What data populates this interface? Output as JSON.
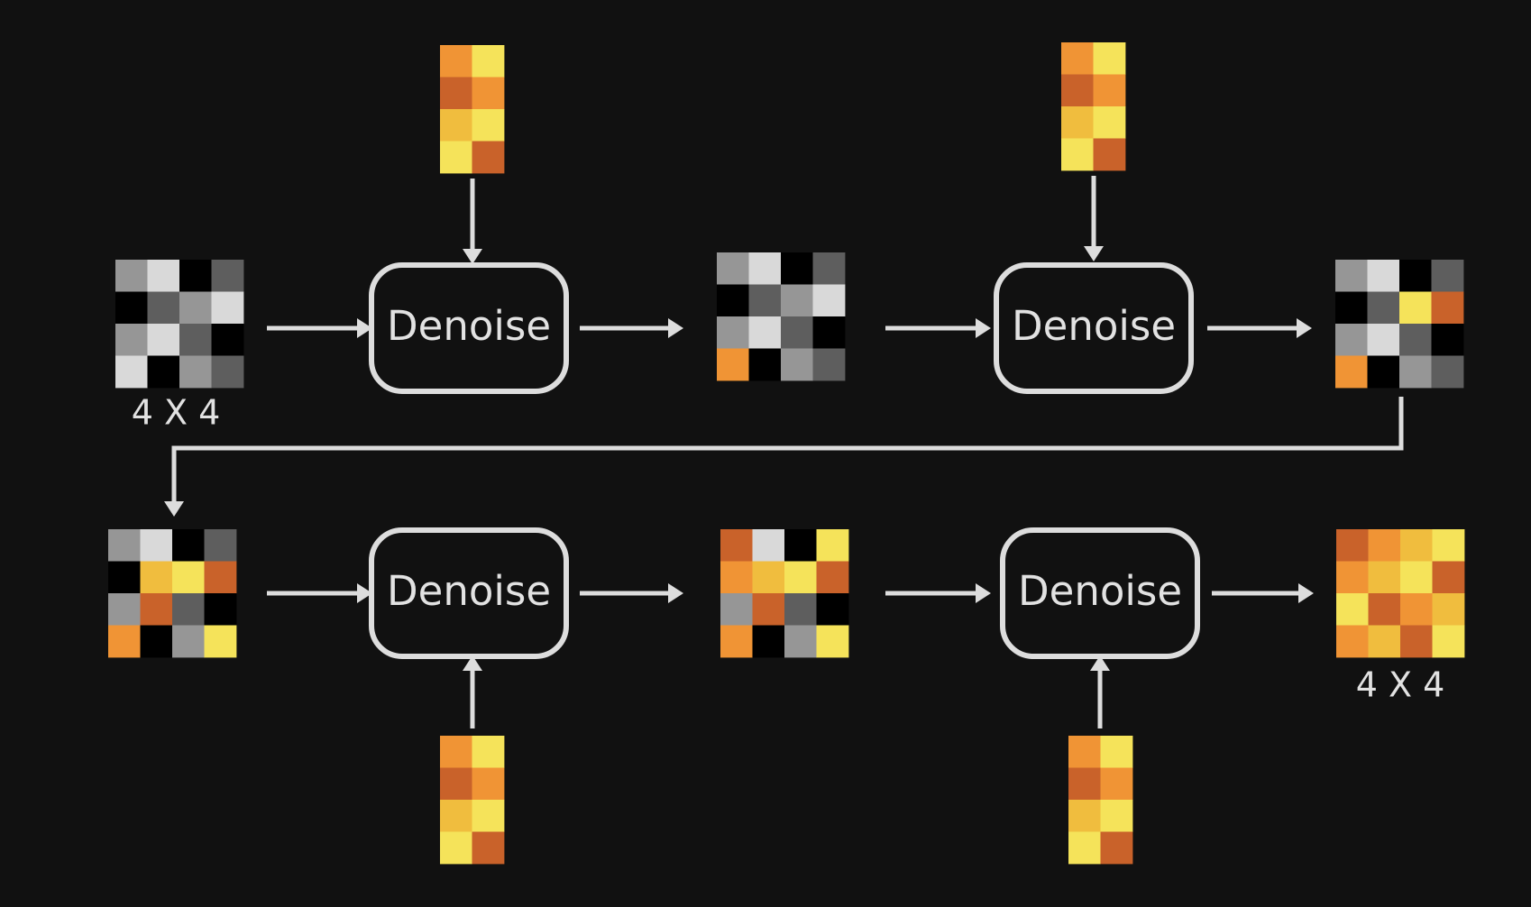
{
  "diagram": {
    "background": "#111111",
    "line_color": "#dddddd",
    "input_size_label": "4 X 4",
    "output_size_label": "4 X 4",
    "steps": [
      {
        "label": "Denoise"
      },
      {
        "label": "Denoise"
      },
      {
        "label": "Denoise"
      },
      {
        "label": "Denoise"
      }
    ],
    "palette": {
      "g1": "#969696",
      "g2": "#d9d9d9",
      "g3": "#000000",
      "g4": "#5e5e5e",
      "o": "#f09435",
      "d": "#c9622a",
      "y": "#f5e35a",
      "m": "#f0bd3e"
    },
    "latents": [
      {
        "name": "latent-initial-noise",
        "cells": [
          [
            "g1",
            "g2",
            "g3",
            "g4"
          ],
          [
            "g3",
            "g4",
            "g1",
            "g2"
          ],
          [
            "g1",
            "g2",
            "g4",
            "g3"
          ],
          [
            "g2",
            "g3",
            "g1",
            "g4"
          ]
        ]
      },
      {
        "name": "latent-step-1",
        "cells": [
          [
            "g1",
            "g2",
            "g3",
            "g4"
          ],
          [
            "g3",
            "g4",
            "g1",
            "g2"
          ],
          [
            "g1",
            "g2",
            "g4",
            "g3"
          ],
          [
            "o",
            "g3",
            "g1",
            "g4"
          ]
        ]
      },
      {
        "name": "latent-step-2",
        "cells": [
          [
            "g1",
            "g2",
            "g3",
            "g4"
          ],
          [
            "g3",
            "g4",
            "y",
            "d"
          ],
          [
            "g1",
            "g2",
            "g4",
            "g3"
          ],
          [
            "o",
            "g3",
            "g1",
            "g4"
          ]
        ]
      },
      {
        "name": "latent-step-2-continued",
        "cells": [
          [
            "g1",
            "g2",
            "g3",
            "g4"
          ],
          [
            "g3",
            "m",
            "y",
            "d"
          ],
          [
            "g1",
            "d",
            "g4",
            "g3"
          ],
          [
            "o",
            "g3",
            "g1",
            "y"
          ]
        ]
      },
      {
        "name": "latent-step-3",
        "cells": [
          [
            "d",
            "g2",
            "g3",
            "y"
          ],
          [
            "o",
            "m",
            "y",
            "d"
          ],
          [
            "g1",
            "d",
            "g4",
            "g3"
          ],
          [
            "o",
            "g3",
            "g1",
            "y"
          ]
        ]
      },
      {
        "name": "latent-final",
        "cells": [
          [
            "d",
            "o",
            "m",
            "y"
          ],
          [
            "o",
            "m",
            "y",
            "d"
          ],
          [
            "y",
            "d",
            "o",
            "m"
          ],
          [
            "o",
            "m",
            "d",
            "y"
          ]
        ]
      }
    ],
    "conditioning": [
      {
        "name": "conditioning-1",
        "cells": [
          [
            "o",
            "y"
          ],
          [
            "d",
            "o"
          ],
          [
            "m",
            "y"
          ],
          [
            "y",
            "d"
          ]
        ]
      },
      {
        "name": "conditioning-2",
        "cells": [
          [
            "o",
            "y"
          ],
          [
            "d",
            "o"
          ],
          [
            "m",
            "y"
          ],
          [
            "y",
            "d"
          ]
        ]
      },
      {
        "name": "conditioning-3",
        "cells": [
          [
            "o",
            "y"
          ],
          [
            "d",
            "o"
          ],
          [
            "m",
            "y"
          ],
          [
            "y",
            "d"
          ]
        ]
      },
      {
        "name": "conditioning-4",
        "cells": [
          [
            "o",
            "y"
          ],
          [
            "d",
            "o"
          ],
          [
            "m",
            "y"
          ],
          [
            "y",
            "d"
          ]
        ]
      }
    ]
  }
}
